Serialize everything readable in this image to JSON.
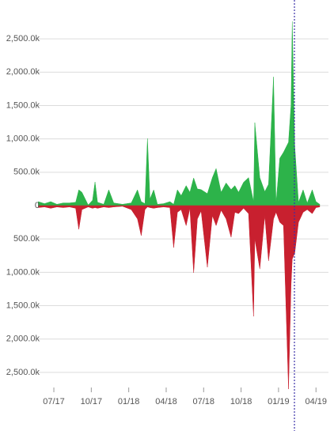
{
  "chart_data": {
    "type": "area",
    "x": [
      -1.25,
      -0.75,
      -0.25,
      0.25,
      0.75,
      1.25,
      1.75,
      2.0,
      2.25,
      2.75,
      3.1,
      3.3,
      3.5,
      4.0,
      4.4,
      4.8,
      5.5,
      6.2,
      6.7,
      7.0,
      7.3,
      7.5,
      7.7,
      8.0,
      8.3,
      8.8,
      9.3,
      9.6,
      9.9,
      10.2,
      10.6,
      10.9,
      11.2,
      11.5,
      11.8,
      12.3,
      12.7,
      13.0,
      13.4,
      13.8,
      14.2,
      14.5,
      14.8,
      15.2,
      15.6,
      16.0,
      16.1,
      16.5,
      16.9,
      17.2,
      17.6,
      17.8,
      18.1,
      18.4,
      18.8,
      19.0,
      19.1,
      19.3,
      19.6,
      19.97,
      20.3,
      20.7,
      21.0,
      21.3
    ],
    "series": [
      {
        "color": "#2db34a",
        "values": [
          60,
          30,
          60,
          20,
          40,
          40,
          50,
          237,
          200,
          10,
          80,
          355,
          50,
          20,
          237,
          40,
          20,
          40,
          237,
          60,
          30,
          1007,
          100,
          237,
          20,
          30,
          60,
          20,
          237,
          150,
          300,
          200,
          415,
          250,
          240,
          180,
          420,
          556,
          200,
          340,
          240,
          300,
          200,
          350,
          420,
          60,
          1244,
          420,
          210,
          320,
          1930,
          30,
          710,
          800,
          950,
          1500,
          2760,
          890,
          50,
          237,
          40,
          237,
          60,
          20
        ]
      },
      {
        "color": "#c8202f",
        "values": [
          -30,
          -20,
          -40,
          -20,
          -30,
          -20,
          -40,
          -355,
          -60,
          -20,
          -40,
          -30,
          -40,
          -20,
          -30,
          -20,
          -10,
          -60,
          -200,
          -450,
          -60,
          -20,
          -30,
          -40,
          -30,
          -20,
          -30,
          -630,
          -100,
          -60,
          -300,
          -40,
          -1007,
          -200,
          -80,
          -924,
          -150,
          -300,
          -70,
          -200,
          -474,
          -100,
          -120,
          -40,
          -120,
          -1660,
          -500,
          -950,
          -150,
          -830,
          -200,
          -100,
          -250,
          -300,
          -2750,
          -1200,
          -800,
          -710,
          -250,
          -100,
          -60,
          -120,
          -30,
          -20
        ]
      }
    ],
    "xlim": [
      -1.27,
      22.0
    ],
    "xticks": [
      {
        "value": 0,
        "label": "07/17"
      },
      {
        "value": 3,
        "label": "10/17"
      },
      {
        "value": 6,
        "label": "01/18"
      },
      {
        "value": 9,
        "label": "04/18"
      },
      {
        "value": 12,
        "label": "07/18"
      },
      {
        "value": 15,
        "label": "10/18"
      },
      {
        "value": 18,
        "label": "01/19"
      },
      {
        "value": 21,
        "label": "04/19"
      }
    ],
    "ylim": [
      -2750,
      2750
    ],
    "yticks": [
      {
        "value": 2500,
        "label": "2,500.0k"
      },
      {
        "value": 2000,
        "label": "2,000.0k"
      },
      {
        "value": 1500,
        "label": "1,500.0k"
      },
      {
        "value": 1000,
        "label": "1,000.0k"
      },
      {
        "value": 500,
        "label": "500.0k"
      },
      0,
      {
        "value": -500,
        "label": "500.0k"
      },
      {
        "value": -1000,
        "label": "1,000.0k"
      },
      {
        "value": -1500,
        "label": "1,500.0k"
      },
      {
        "value": -2000,
        "label": "2,000.0k"
      },
      {
        "value": -2500,
        "label": "2,500.0k"
      }
    ],
    "grid": true
  }
}
